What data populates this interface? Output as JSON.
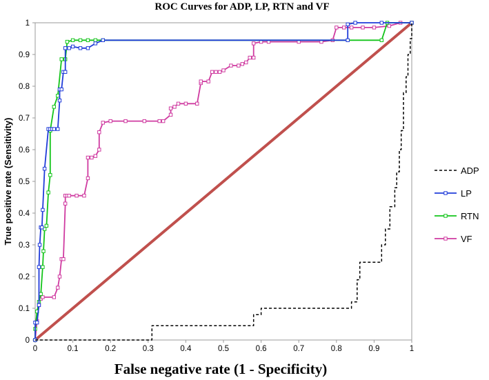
{
  "chart_data": {
    "type": "line",
    "title": "ROC Curves for ADP, LP, RTN and VF",
    "xlabel": "False negative rate (1 - Specificity)",
    "ylabel": "True positive rate (Sensitivity)",
    "xlim": [
      0,
      1
    ],
    "ylim": [
      0,
      1
    ],
    "x_ticks": [
      "0",
      "0.1",
      "0.2",
      "0.3",
      "0.4",
      "0.5",
      "0.6",
      "0.7",
      "0.8",
      "0.9",
      "1"
    ],
    "y_ticks": [
      "0",
      "0.1",
      "0.2",
      "0.3",
      "0.4",
      "0.5",
      "0.6",
      "0.7",
      "0.8",
      "0.9",
      "1"
    ],
    "grid": false,
    "legend_position": "right",
    "reference_line": {
      "x": [
        0,
        1
      ],
      "y": [
        0,
        1
      ],
      "color": "#c0504d"
    },
    "series": [
      {
        "name": "ADP",
        "color": "#000000",
        "style": "dashed",
        "markers": false,
        "x": [
          0,
          0.31,
          0.31,
          0.58,
          0.58,
          0.6,
          0.6,
          0.84,
          0.84,
          0.855,
          0.855,
          0.862,
          0.862,
          0.92,
          0.92,
          0.93,
          0.93,
          0.942,
          0.942,
          0.955,
          0.955,
          0.96,
          0.96,
          0.967,
          0.967,
          0.972,
          0.972,
          0.978,
          0.978,
          0.985,
          0.985,
          0.99,
          0.99,
          0.996,
          0.996,
          1.0,
          1.0
        ],
        "y": [
          0,
          0,
          0.045,
          0.045,
          0.08,
          0.08,
          0.1,
          0.1,
          0.12,
          0.12,
          0.19,
          0.19,
          0.245,
          0.245,
          0.3,
          0.3,
          0.35,
          0.35,
          0.42,
          0.42,
          0.48,
          0.48,
          0.53,
          0.53,
          0.6,
          0.6,
          0.66,
          0.66,
          0.78,
          0.78,
          0.83,
          0.83,
          0.9,
          0.9,
          0.95,
          0.95,
          1.0
        ]
      },
      {
        "name": "LP",
        "color": "#1f3bd9",
        "style": "solid",
        "markers": true,
        "x": [
          0,
          0,
          0.005,
          0.01,
          0.01,
          0.012,
          0.015,
          0.018,
          0.02,
          0.025,
          0.035,
          0.04,
          0.045,
          0.05,
          0.06,
          0.065,
          0.065,
          0.07,
          0.075,
          0.08,
          0.08,
          0.09,
          0.1,
          0.12,
          0.14,
          0.16,
          0.18,
          0.83,
          0.83,
          0.85,
          0.92,
          1.0
        ],
        "y": [
          0,
          0.055,
          0.055,
          0.11,
          0.23,
          0.3,
          0.355,
          0.355,
          0.41,
          0.54,
          0.665,
          0.665,
          0.665,
          0.665,
          0.665,
          0.755,
          0.79,
          0.79,
          0.845,
          0.845,
          0.92,
          0.92,
          0.925,
          0.92,
          0.92,
          0.935,
          0.945,
          0.945,
          0.995,
          1.0,
          1.0,
          1.0
        ]
      },
      {
        "name": "RTN",
        "color": "#12c419",
        "style": "solid",
        "markers": true,
        "x": [
          0,
          0,
          0.005,
          0.01,
          0.015,
          0.02,
          0.022,
          0.025,
          0.03,
          0.035,
          0.04,
          0.04,
          0.05,
          0.06,
          0.07,
          0.08,
          0.085,
          0.1,
          0.12,
          0.14,
          0.16,
          0.18,
          0.92,
          0.935,
          1.0
        ],
        "y": [
          0,
          0.035,
          0.09,
          0.12,
          0.145,
          0.23,
          0.28,
          0.35,
          0.36,
          0.465,
          0.52,
          0.66,
          0.735,
          0.77,
          0.885,
          0.885,
          0.94,
          0.945,
          0.945,
          0.945,
          0.945,
          0.945,
          0.945,
          1.0,
          1.0
        ]
      },
      {
        "name": "VF",
        "color": "#cf3aa0",
        "style": "solid",
        "markers": true,
        "x": [
          0,
          0.005,
          0.01,
          0.015,
          0.02,
          0.05,
          0.06,
          0.065,
          0.07,
          0.075,
          0.08,
          0.08,
          0.085,
          0.09,
          0.11,
          0.13,
          0.14,
          0.14,
          0.15,
          0.16,
          0.17,
          0.17,
          0.18,
          0.2,
          0.24,
          0.29,
          0.33,
          0.34,
          0.36,
          0.36,
          0.37,
          0.38,
          0.4,
          0.43,
          0.44,
          0.44,
          0.46,
          0.47,
          0.48,
          0.49,
          0.5,
          0.52,
          0.54,
          0.55,
          0.56,
          0.57,
          0.58,
          0.58,
          0.6,
          0.62,
          0.7,
          0.76,
          0.79,
          0.8,
          0.82,
          0.84,
          0.87,
          0.9,
          0.94,
          0.97,
          1.0
        ],
        "y": [
          0,
          0.06,
          0.11,
          0.13,
          0.135,
          0.135,
          0.165,
          0.2,
          0.255,
          0.255,
          0.43,
          0.455,
          0.455,
          0.455,
          0.455,
          0.455,
          0.51,
          0.575,
          0.575,
          0.58,
          0.6,
          0.655,
          0.685,
          0.69,
          0.69,
          0.69,
          0.69,
          0.69,
          0.71,
          0.73,
          0.735,
          0.745,
          0.745,
          0.745,
          0.81,
          0.815,
          0.815,
          0.845,
          0.845,
          0.845,
          0.85,
          0.865,
          0.865,
          0.87,
          0.875,
          0.89,
          0.89,
          0.935,
          0.94,
          0.94,
          0.94,
          0.94,
          0.945,
          0.985,
          0.985,
          0.985,
          0.985,
          0.985,
          0.99,
          1.0,
          1.0
        ]
      }
    ]
  }
}
